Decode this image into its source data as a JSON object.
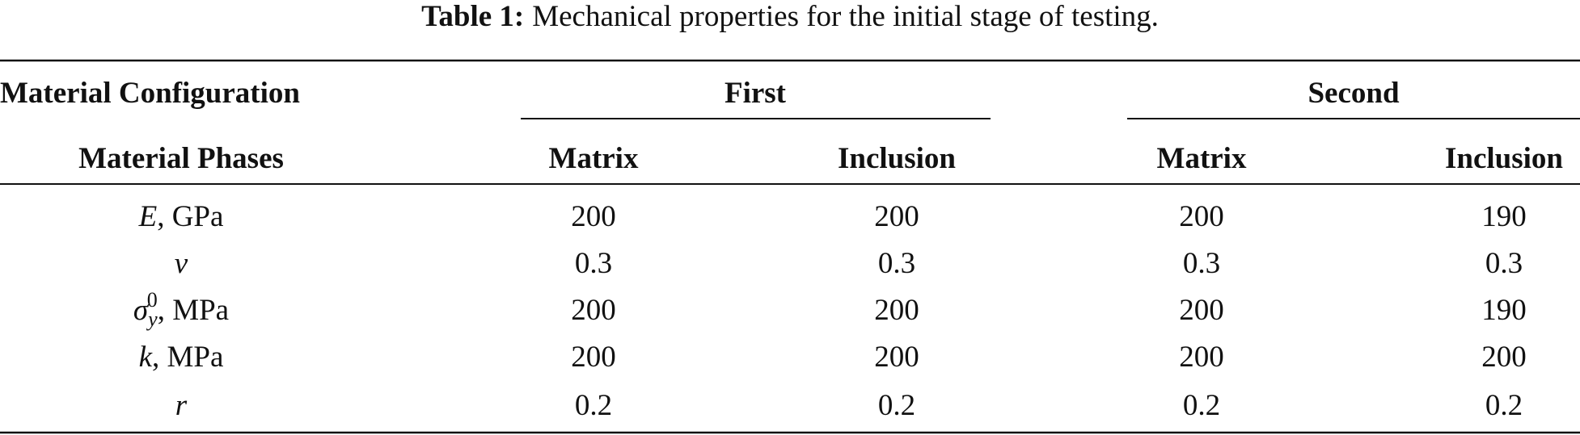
{
  "caption": {
    "label": "Table 1:",
    "text": "Mechanical properties for the initial stage of testing."
  },
  "header": {
    "group_label": "Material Configuration",
    "groups": [
      "First",
      "Second"
    ],
    "phase_label": "Material Phases",
    "phases": [
      "Matrix",
      "Inclusion",
      "Matrix",
      "Inclusion"
    ]
  },
  "rows": [
    {
      "symbol": "E",
      "unit": ", GPa",
      "values": [
        200,
        200,
        200,
        190
      ]
    },
    {
      "symbol": "ν",
      "values": [
        0.3,
        0.3,
        0.3,
        0.3
      ]
    },
    {
      "symbol": "σ",
      "sub": "y",
      "sup": "0",
      "unit": ", MPa",
      "values": [
        200,
        200,
        200,
        190
      ]
    },
    {
      "symbol": "k",
      "unit": ", MPa",
      "values": [
        200,
        200,
        200,
        200
      ]
    },
    {
      "symbol": "r",
      "values": [
        0.2,
        0.2,
        0.2,
        0.2
      ]
    }
  ]
}
